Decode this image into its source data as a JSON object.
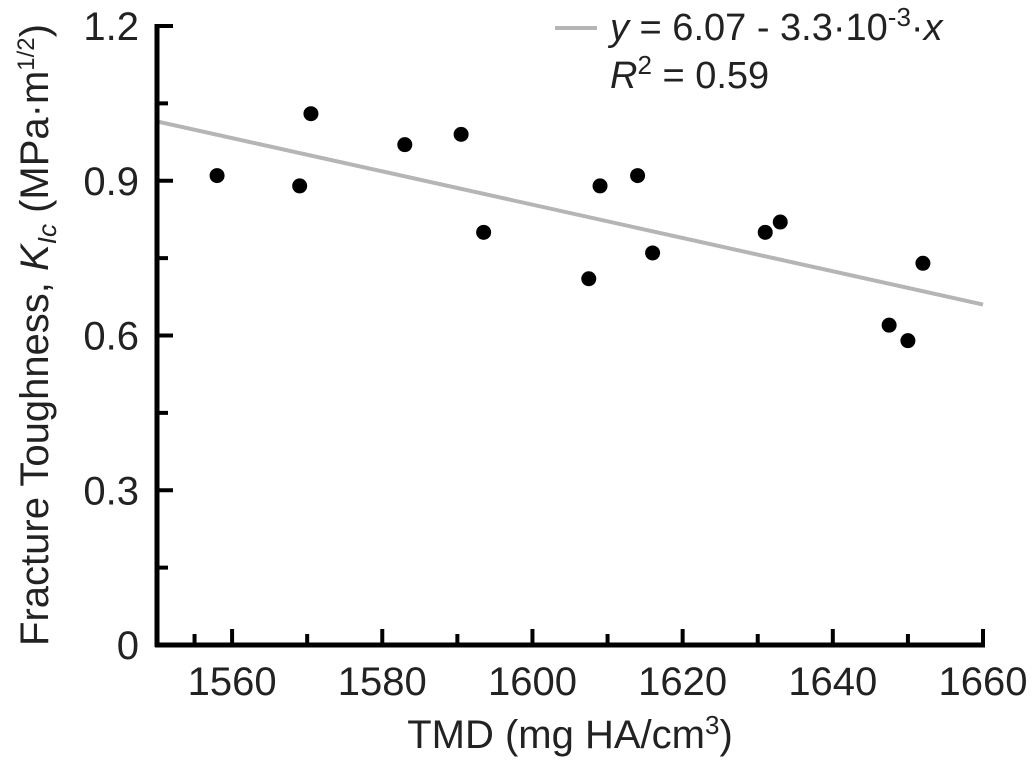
{
  "chart_data": {
    "type": "scatter",
    "xlabel": {
      "main": "TMD (mg HA/cm",
      "sup": "3",
      "end": ")"
    },
    "ylabel": {
      "main": "Fracture Toughness, ",
      "italic": "K",
      "sub": "Ic",
      "unit": " (MPa·m",
      "sup": "1/2",
      "end": ")"
    },
    "xlim": [
      1550,
      1660
    ],
    "ylim": [
      0,
      1.2
    ],
    "xticks": [
      1560,
      1580,
      1600,
      1620,
      1640,
      1660
    ],
    "xtick_labels": [
      "1560",
      "1580",
      "1600",
      "1620",
      "1640",
      "1660"
    ],
    "yticks": [
      0,
      0.3,
      0.6,
      0.9,
      1.2
    ],
    "ytick_labels": [
      "0",
      "0.3",
      "0.6",
      "0.9",
      "1.2"
    ],
    "points": [
      {
        "x": 1558,
        "y": 0.91
      },
      {
        "x": 1569,
        "y": 0.89
      },
      {
        "x": 1570.5,
        "y": 1.03
      },
      {
        "x": 1583,
        "y": 0.97
      },
      {
        "x": 1590.5,
        "y": 0.99
      },
      {
        "x": 1593.5,
        "y": 0.8
      },
      {
        "x": 1607.5,
        "y": 0.71
      },
      {
        "x": 1609,
        "y": 0.89
      },
      {
        "x": 1614,
        "y": 0.91
      },
      {
        "x": 1616,
        "y": 0.76
      },
      {
        "x": 1631,
        "y": 0.8
      },
      {
        "x": 1633,
        "y": 0.82
      },
      {
        "x": 1647.5,
        "y": 0.62
      },
      {
        "x": 1650,
        "y": 0.59
      },
      {
        "x": 1652,
        "y": 0.74
      }
    ],
    "fit": {
      "x": [
        1550,
        1660
      ],
      "y": [
        1.015,
        0.66
      ],
      "color": "#b5b5b5",
      "equation": {
        "y": "y",
        "rest": " = 6.07 - 3.3·10",
        "sup": "-3",
        "mid": "·",
        "x": "x"
      },
      "r2": {
        "r": "R",
        "sup": "2",
        "rest": " = 0.59"
      }
    },
    "point_color": "#000000",
    "axis_color": "#000000"
  }
}
